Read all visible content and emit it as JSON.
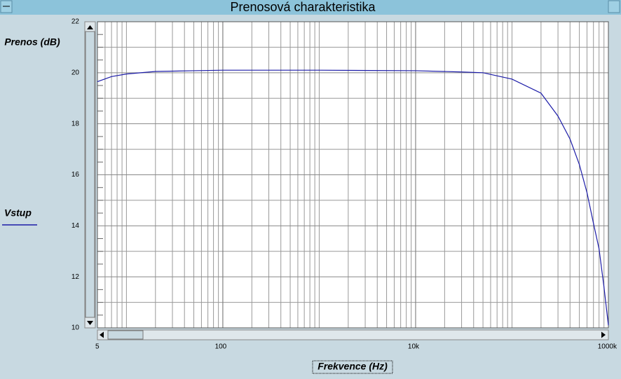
{
  "chart_data": {
    "type": "line",
    "title": "Prenosová charakteristika",
    "y_label": "Prenos (dB)",
    "x_label": "Frekvence (Hz)",
    "log_x": true,
    "grid": true,
    "legend": "left",
    "x": [
      5,
      7,
      10,
      20,
      50,
      100,
      1000,
      10000,
      30000,
      50000,
      100000,
      200000,
      300000,
      400000,
      500000,
      600000,
      700000,
      800000,
      900000,
      1000000
    ],
    "series": [
      {
        "name": "Vstup",
        "color": "#1c1ca8",
        "values": [
          19.65,
          19.85,
          19.95,
          20.05,
          20.08,
          20.1,
          20.1,
          20.08,
          20.03,
          20.0,
          19.75,
          19.2,
          18.3,
          17.4,
          16.4,
          15.3,
          14.1,
          13.1,
          11.6,
          10.1
        ]
      }
    ],
    "xlim": [
      5,
      1000000
    ],
    "xticks": [
      5,
      100,
      {
        "value": 10000,
        "label": "10k"
      },
      {
        "value": 1000000,
        "label": "1000k"
      }
    ],
    "ylim": [
      10,
      22
    ],
    "yticks": [
      10,
      12,
      14,
      16,
      18,
      20,
      22
    ]
  }
}
